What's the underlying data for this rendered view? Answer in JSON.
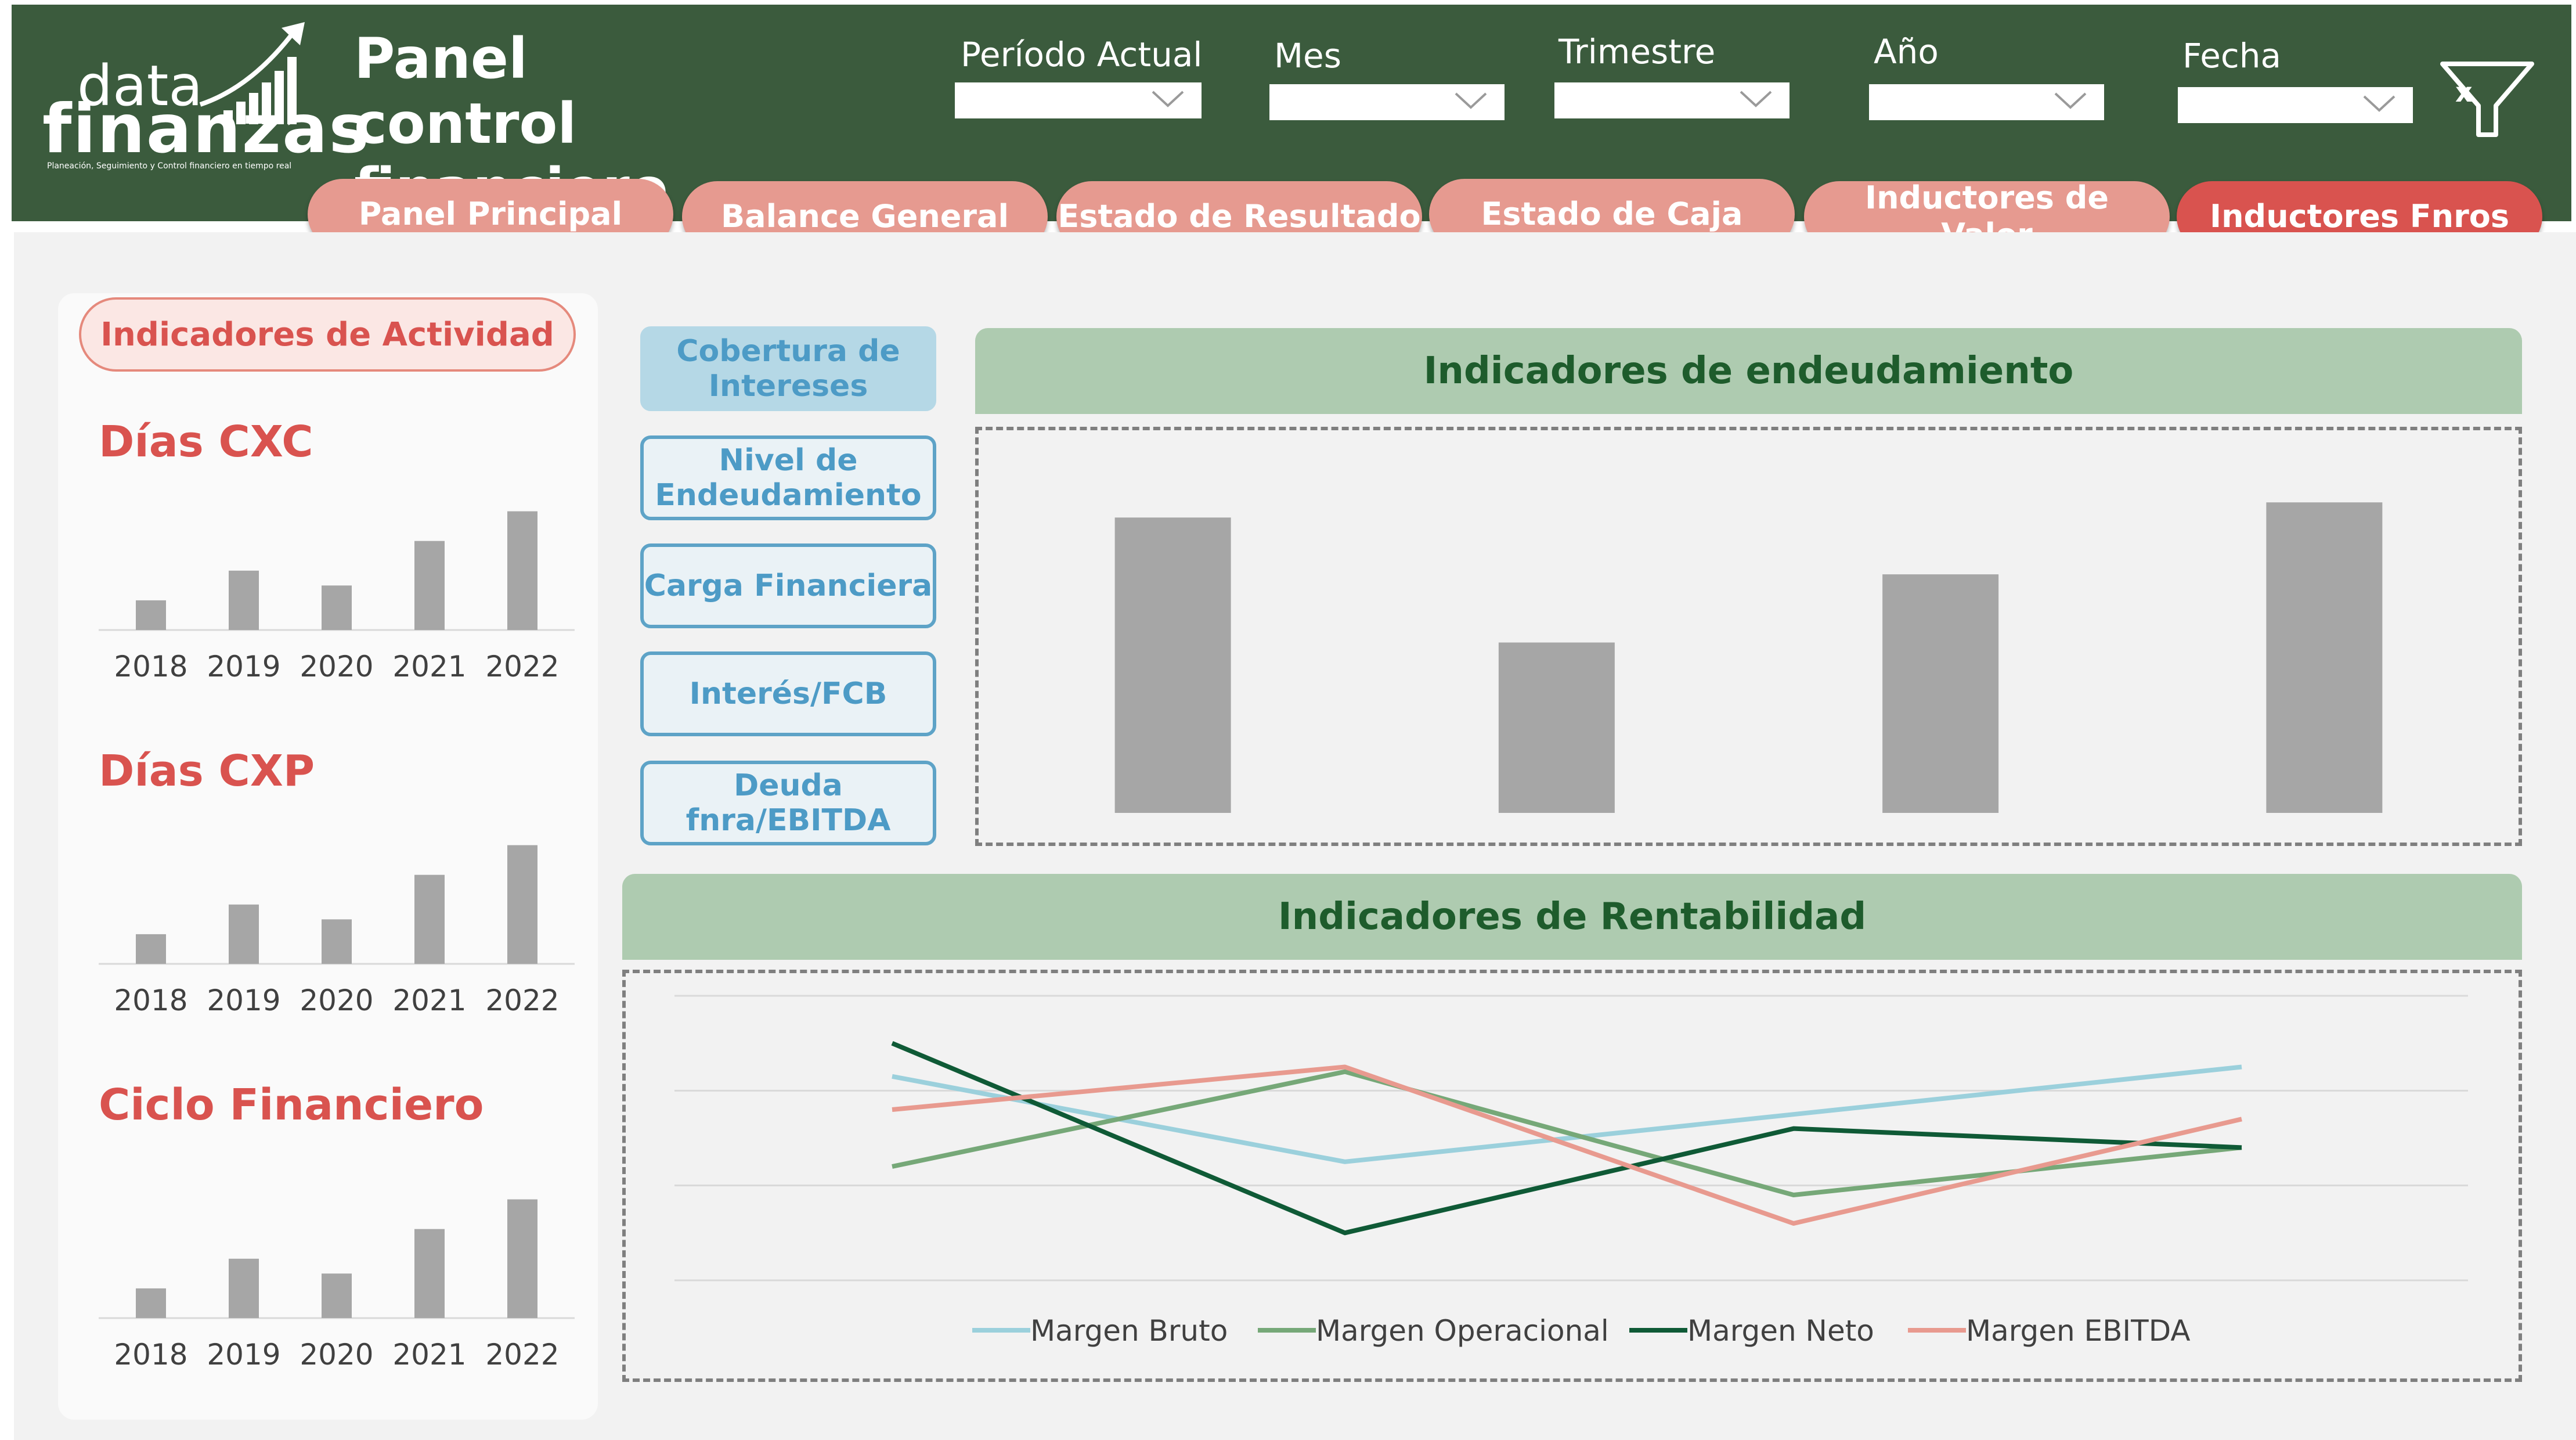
{
  "logo": {
    "line1": "data",
    "line2": "finanzas",
    "tagline": "Planeación, Seguimiento y Control financiero en tiempo real"
  },
  "header": {
    "title": "Panel control\nfinanciero"
  },
  "filters": [
    {
      "label": "Período Actual",
      "value": ""
    },
    {
      "label": "Mes",
      "value": ""
    },
    {
      "label": "Trimestre",
      "value": ""
    },
    {
      "label": "Año",
      "value": ""
    },
    {
      "label": "Fecha",
      "value": ""
    }
  ],
  "nav": [
    {
      "label": "Panel Principal"
    },
    {
      "label": "Balance General"
    },
    {
      "label": "Estado de Resultado"
    },
    {
      "label": "Estado de Caja"
    },
    {
      "label": "Inductores de Valor"
    },
    {
      "label": "Inductores Fnros"
    }
  ],
  "activity": {
    "pill_label": "Indicadores de Actividad",
    "charts": [
      {
        "title": "Días CXC"
      },
      {
        "title": "Días CXP"
      },
      {
        "title": "Ciclo Financiero"
      }
    ]
  },
  "side_buttons": [
    {
      "label": "Cobertura de Intereses"
    },
    {
      "label": "Nivel de Endeudamiento"
    },
    {
      "label": "Carga Financiera"
    },
    {
      "label": "Interés/FCB"
    },
    {
      "label": "Deuda fnra/EBITDA"
    }
  ],
  "debt_section": {
    "title": "Indicadores de endeudamiento"
  },
  "profit_section": {
    "title": "Indicadores de Rentabilidad"
  },
  "colors": {
    "header_bg": "#3b5b3d",
    "nav_tab": "#e69a90",
    "nav_tab_active": "#d9534f",
    "accent_red": "#d9534f",
    "section_header_bg": "#aecbb0",
    "section_header_text": "#1e5c2c",
    "bar_gray": "#a6a6a6",
    "side_button_border": "#5ea3c7"
  },
  "chart_data": [
    {
      "type": "bar",
      "title": "Días CXC",
      "categories": [
        "2018",
        "2019",
        "2020",
        "2021",
        "2022"
      ],
      "values": [
        10,
        20,
        15,
        30,
        40
      ],
      "ylim": [
        0,
        45
      ]
    },
    {
      "type": "bar",
      "title": "Días CXP",
      "categories": [
        "2018",
        "2019",
        "2020",
        "2021",
        "2022"
      ],
      "values": [
        10,
        20,
        15,
        30,
        40
      ],
      "ylim": [
        0,
        45
      ]
    },
    {
      "type": "bar",
      "title": "Ciclo Financiero",
      "categories": [
        "2018",
        "2019",
        "2020",
        "2021",
        "2022"
      ],
      "values": [
        10,
        20,
        15,
        30,
        40
      ],
      "ylim": [
        0,
        45
      ]
    },
    {
      "type": "bar",
      "title": "Indicadores de endeudamiento",
      "categories": [
        "",
        "",
        "",
        ""
      ],
      "values": [
        78,
        45,
        63,
        82
      ],
      "ylim": [
        0,
        92
      ]
    },
    {
      "type": "line",
      "title": "Indicadores de Rentabilidad",
      "x": [
        1,
        2,
        3,
        4
      ],
      "ylim": [
        0,
        60
      ],
      "grid": true,
      "legend": "bottom",
      "series": [
        {
          "name": "Margen Bruto",
          "color": "#9bd0dc",
          "values": [
            43,
            25,
            35,
            45
          ]
        },
        {
          "name": "Margen Operacional",
          "color": "#76a878",
          "values": [
            24,
            44,
            18,
            28
          ]
        },
        {
          "name": "Margen Neto",
          "color": "#0f5a36",
          "values": [
            50,
            10,
            32,
            28
          ]
        },
        {
          "name": "Margen EBITDA",
          "color": "#e89a8f",
          "values": [
            36,
            45,
            12,
            34
          ]
        }
      ]
    }
  ]
}
